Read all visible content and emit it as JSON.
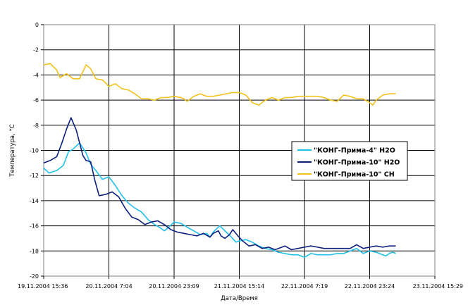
{
  "chart_data": {
    "type": "line",
    "title": "",
    "xlabel": "Дата/Время",
    "ylabel": "Температура, °С",
    "x_ticks": [
      "19.11.2004 15:36",
      "20.11.2004 7:04",
      "20.11.2004 23:09",
      "21.11.2004 15:14",
      "22.11.2004 7:19",
      "22.11.2004 23:24",
      "23.11.2004 15:29"
    ],
    "x_range_index": [
      0,
      6
    ],
    "ylim": [
      -20,
      0
    ],
    "y_ticks": [
      0,
      -2,
      -4,
      -6,
      -8,
      -10,
      -12,
      -14,
      -16,
      -18,
      -20
    ],
    "y_tick_labels": [
      "0",
      "-2",
      "-4",
      "-6",
      "-8",
      "-10",
      "-12",
      "-14",
      "-16",
      "-18",
      "-20"
    ],
    "grid": true,
    "legend_position": "right",
    "series": [
      {
        "name": "\"КОНГ-Прима-4\"  H2O",
        "color": "#22c0e8",
        "points": [
          [
            0,
            -11.4
          ],
          [
            0.08,
            -11.8
          ],
          [
            0.2,
            -11.6
          ],
          [
            0.3,
            -11.2
          ],
          [
            0.38,
            -10.1
          ],
          [
            0.45,
            -9.9
          ],
          [
            0.55,
            -9.4
          ],
          [
            0.65,
            -10.2
          ],
          [
            0.72,
            -11.1
          ],
          [
            0.8,
            -11.6
          ],
          [
            0.9,
            -12.3
          ],
          [
            1.0,
            -12.1
          ],
          [
            1.1,
            -12.8
          ],
          [
            1.2,
            -13.6
          ],
          [
            1.3,
            -14.2
          ],
          [
            1.4,
            -14.6
          ],
          [
            1.5,
            -14.9
          ],
          [
            1.6,
            -15.5
          ],
          [
            1.7,
            -15.9
          ],
          [
            1.8,
            -16.2
          ],
          [
            1.85,
            -16.4
          ],
          [
            1.9,
            -16.2
          ],
          [
            2.0,
            -15.7
          ],
          [
            2.1,
            -15.8
          ],
          [
            2.2,
            -16.1
          ],
          [
            2.3,
            -16.4
          ],
          [
            2.4,
            -16.7
          ],
          [
            2.5,
            -16.6
          ],
          [
            2.55,
            -16.9
          ],
          [
            2.6,
            -16.5
          ],
          [
            2.7,
            -16.0
          ],
          [
            2.8,
            -16.5
          ],
          [
            2.88,
            -16.9
          ],
          [
            2.95,
            -17.3
          ],
          [
            3.0,
            -17.2
          ],
          [
            3.1,
            -17.1
          ],
          [
            3.2,
            -17.3
          ],
          [
            3.3,
            -17.6
          ],
          [
            3.4,
            -17.8
          ],
          [
            3.5,
            -17.9
          ],
          [
            3.6,
            -18.1
          ],
          [
            3.7,
            -18.2
          ],
          [
            3.8,
            -18.3
          ],
          [
            3.9,
            -18.3
          ],
          [
            4.0,
            -18.5
          ],
          [
            4.1,
            -18.2
          ],
          [
            4.2,
            -18.3
          ],
          [
            4.3,
            -18.3
          ],
          [
            4.4,
            -18.3
          ],
          [
            4.5,
            -18.2
          ],
          [
            4.6,
            -18.2
          ],
          [
            4.7,
            -18.0
          ],
          [
            4.8,
            -17.8
          ],
          [
            4.9,
            -18.2
          ],
          [
            5.0,
            -18.0
          ],
          [
            5.1,
            -18.1
          ],
          [
            5.2,
            -18.3
          ],
          [
            5.25,
            -18.4
          ],
          [
            5.3,
            -18.2
          ],
          [
            5.35,
            -18.1
          ],
          [
            5.4,
            -18.2
          ]
        ]
      },
      {
        "name": "\"КОНГ-Прима-10\"  H2O",
        "color": "#0c1f7c",
        "points": [
          [
            0,
            -11.0
          ],
          [
            0.1,
            -10.8
          ],
          [
            0.2,
            -10.5
          ],
          [
            0.28,
            -9.4
          ],
          [
            0.35,
            -8.3
          ],
          [
            0.42,
            -7.4
          ],
          [
            0.5,
            -8.4
          ],
          [
            0.6,
            -10.4
          ],
          [
            0.65,
            -10.8
          ],
          [
            0.72,
            -10.9
          ],
          [
            0.78,
            -12.3
          ],
          [
            0.85,
            -13.6
          ],
          [
            0.95,
            -13.5
          ],
          [
            1.05,
            -13.3
          ],
          [
            1.15,
            -13.7
          ],
          [
            1.25,
            -14.6
          ],
          [
            1.35,
            -15.3
          ],
          [
            1.45,
            -15.5
          ],
          [
            1.55,
            -15.9
          ],
          [
            1.65,
            -15.7
          ],
          [
            1.75,
            -15.6
          ],
          [
            1.85,
            -15.9
          ],
          [
            1.95,
            -16.3
          ],
          [
            2.05,
            -16.5
          ],
          [
            2.15,
            -16.6
          ],
          [
            2.25,
            -16.7
          ],
          [
            2.35,
            -16.8
          ],
          [
            2.45,
            -16.6
          ],
          [
            2.55,
            -16.9
          ],
          [
            2.6,
            -16.6
          ],
          [
            2.68,
            -16.4
          ],
          [
            2.72,
            -16.8
          ],
          [
            2.78,
            -17.0
          ],
          [
            2.85,
            -16.7
          ],
          [
            2.9,
            -16.3
          ],
          [
            2.98,
            -16.8
          ],
          [
            3.05,
            -17.2
          ],
          [
            3.15,
            -17.6
          ],
          [
            3.25,
            -17.5
          ],
          [
            3.35,
            -17.8
          ],
          [
            3.45,
            -17.7
          ],
          [
            3.55,
            -17.9
          ],
          [
            3.6,
            -17.8
          ],
          [
            3.7,
            -17.6
          ],
          [
            3.8,
            -17.9
          ],
          [
            3.9,
            -17.8
          ],
          [
            4.0,
            -17.7
          ],
          [
            4.1,
            -17.6
          ],
          [
            4.2,
            -17.7
          ],
          [
            4.3,
            -17.8
          ],
          [
            4.4,
            -17.8
          ],
          [
            4.5,
            -17.8
          ],
          [
            4.6,
            -17.8
          ],
          [
            4.7,
            -17.8
          ],
          [
            4.8,
            -17.5
          ],
          [
            4.9,
            -17.8
          ],
          [
            5.0,
            -17.7
          ],
          [
            5.1,
            -17.6
          ],
          [
            5.2,
            -17.7
          ],
          [
            5.3,
            -17.6
          ],
          [
            5.4,
            -17.6
          ]
        ]
      },
      {
        "name": "\"КОНГ-Прима-10\"  CH",
        "color": "#f2c21c",
        "points": [
          [
            0,
            -3.2
          ],
          [
            0.1,
            -3.1
          ],
          [
            0.2,
            -3.6
          ],
          [
            0.25,
            -4.2
          ],
          [
            0.35,
            -3.9
          ],
          [
            0.45,
            -4.3
          ],
          [
            0.55,
            -4.3
          ],
          [
            0.65,
            -3.2
          ],
          [
            0.72,
            -3.5
          ],
          [
            0.8,
            -4.3
          ],
          [
            0.9,
            -4.4
          ],
          [
            1.0,
            -4.9
          ],
          [
            1.1,
            -4.7
          ],
          [
            1.2,
            -5.1
          ],
          [
            1.3,
            -5.2
          ],
          [
            1.4,
            -5.5
          ],
          [
            1.5,
            -5.9
          ],
          [
            1.6,
            -5.9
          ],
          [
            1.7,
            -6.0
          ],
          [
            1.8,
            -5.8
          ],
          [
            1.9,
            -5.8
          ],
          [
            2.0,
            -5.7
          ],
          [
            2.1,
            -5.8
          ],
          [
            2.15,
            -5.9
          ],
          [
            2.2,
            -6.1
          ],
          [
            2.3,
            -5.7
          ],
          [
            2.4,
            -5.5
          ],
          [
            2.5,
            -5.7
          ],
          [
            2.6,
            -5.7
          ],
          [
            2.7,
            -5.6
          ],
          [
            2.8,
            -5.5
          ],
          [
            2.9,
            -5.4
          ],
          [
            3.0,
            -5.4
          ],
          [
            3.1,
            -5.6
          ],
          [
            3.2,
            -6.2
          ],
          [
            3.3,
            -6.4
          ],
          [
            3.4,
            -6.0
          ],
          [
            3.5,
            -5.8
          ],
          [
            3.6,
            -6.0
          ],
          [
            3.7,
            -5.8
          ],
          [
            3.8,
            -5.8
          ],
          [
            3.9,
            -5.7
          ],
          [
            4.0,
            -5.7
          ],
          [
            4.1,
            -5.7
          ],
          [
            4.2,
            -5.7
          ],
          [
            4.3,
            -5.8
          ],
          [
            4.4,
            -6.0
          ],
          [
            4.5,
            -6.1
          ],
          [
            4.6,
            -5.6
          ],
          [
            4.7,
            -5.7
          ],
          [
            4.8,
            -5.9
          ],
          [
            4.9,
            -5.9
          ],
          [
            5.0,
            -6.2
          ],
          [
            5.05,
            -6.4
          ],
          [
            5.1,
            -6.0
          ],
          [
            5.2,
            -5.6
          ],
          [
            5.3,
            -5.5
          ],
          [
            5.4,
            -5.5
          ]
        ]
      }
    ]
  }
}
